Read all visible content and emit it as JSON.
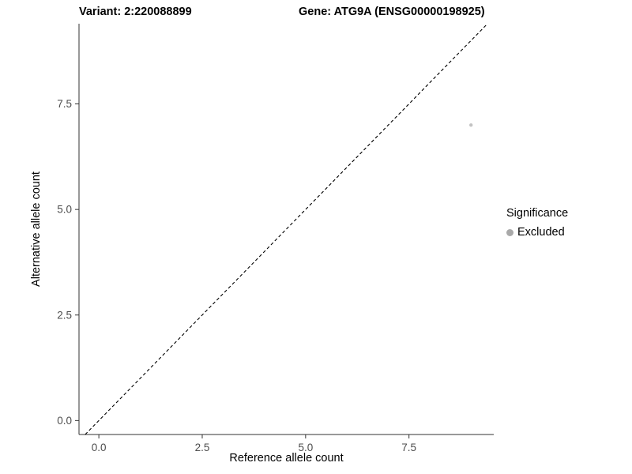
{
  "header": {
    "title_left": "Variant: 2:220088899",
    "title_right": "Gene: ATG9A (ENSG00000198925)"
  },
  "axes": {
    "xlabel": "Reference allele count",
    "ylabel": "Alternative allele count"
  },
  "legend": {
    "title": "Significance",
    "entries": [
      {
        "label": "Excluded",
        "color": "#a9a9a9"
      }
    ]
  },
  "colors": {
    "axis_line": "#333333",
    "tick_label": "#4d4d4d",
    "identity_line": "#000000",
    "point": "#c3c3c3",
    "background": "#ffffff"
  },
  "chart_data": {
    "type": "scatter",
    "title": "Variant: 2:220088899 / Gene: ATG9A (ENSG00000198925)",
    "xlabel": "Reference allele count",
    "ylabel": "Alternative allele count",
    "xlim": [
      -0.48,
      9.55
    ],
    "ylim": [
      -0.33,
      9.4
    ],
    "xticks": {
      "values": [
        0,
        2.5,
        5,
        7.5
      ],
      "labels": [
        "0.0",
        "2.5",
        "5.0",
        "7.5"
      ]
    },
    "yticks": {
      "values": [
        0,
        2.5,
        5,
        7.5
      ],
      "labels": [
        "0.0",
        "2.5",
        "5.0",
        "7.5"
      ]
    },
    "grid": false,
    "identity_line": {
      "style": "dashed",
      "from": -0.33,
      "to": 9.4,
      "color": "#000000"
    },
    "series": [
      {
        "name": "Excluded",
        "color": "#c3c3c3",
        "points": [
          {
            "x": 9,
            "y": 7
          }
        ]
      }
    ],
    "legend_position": "right"
  }
}
